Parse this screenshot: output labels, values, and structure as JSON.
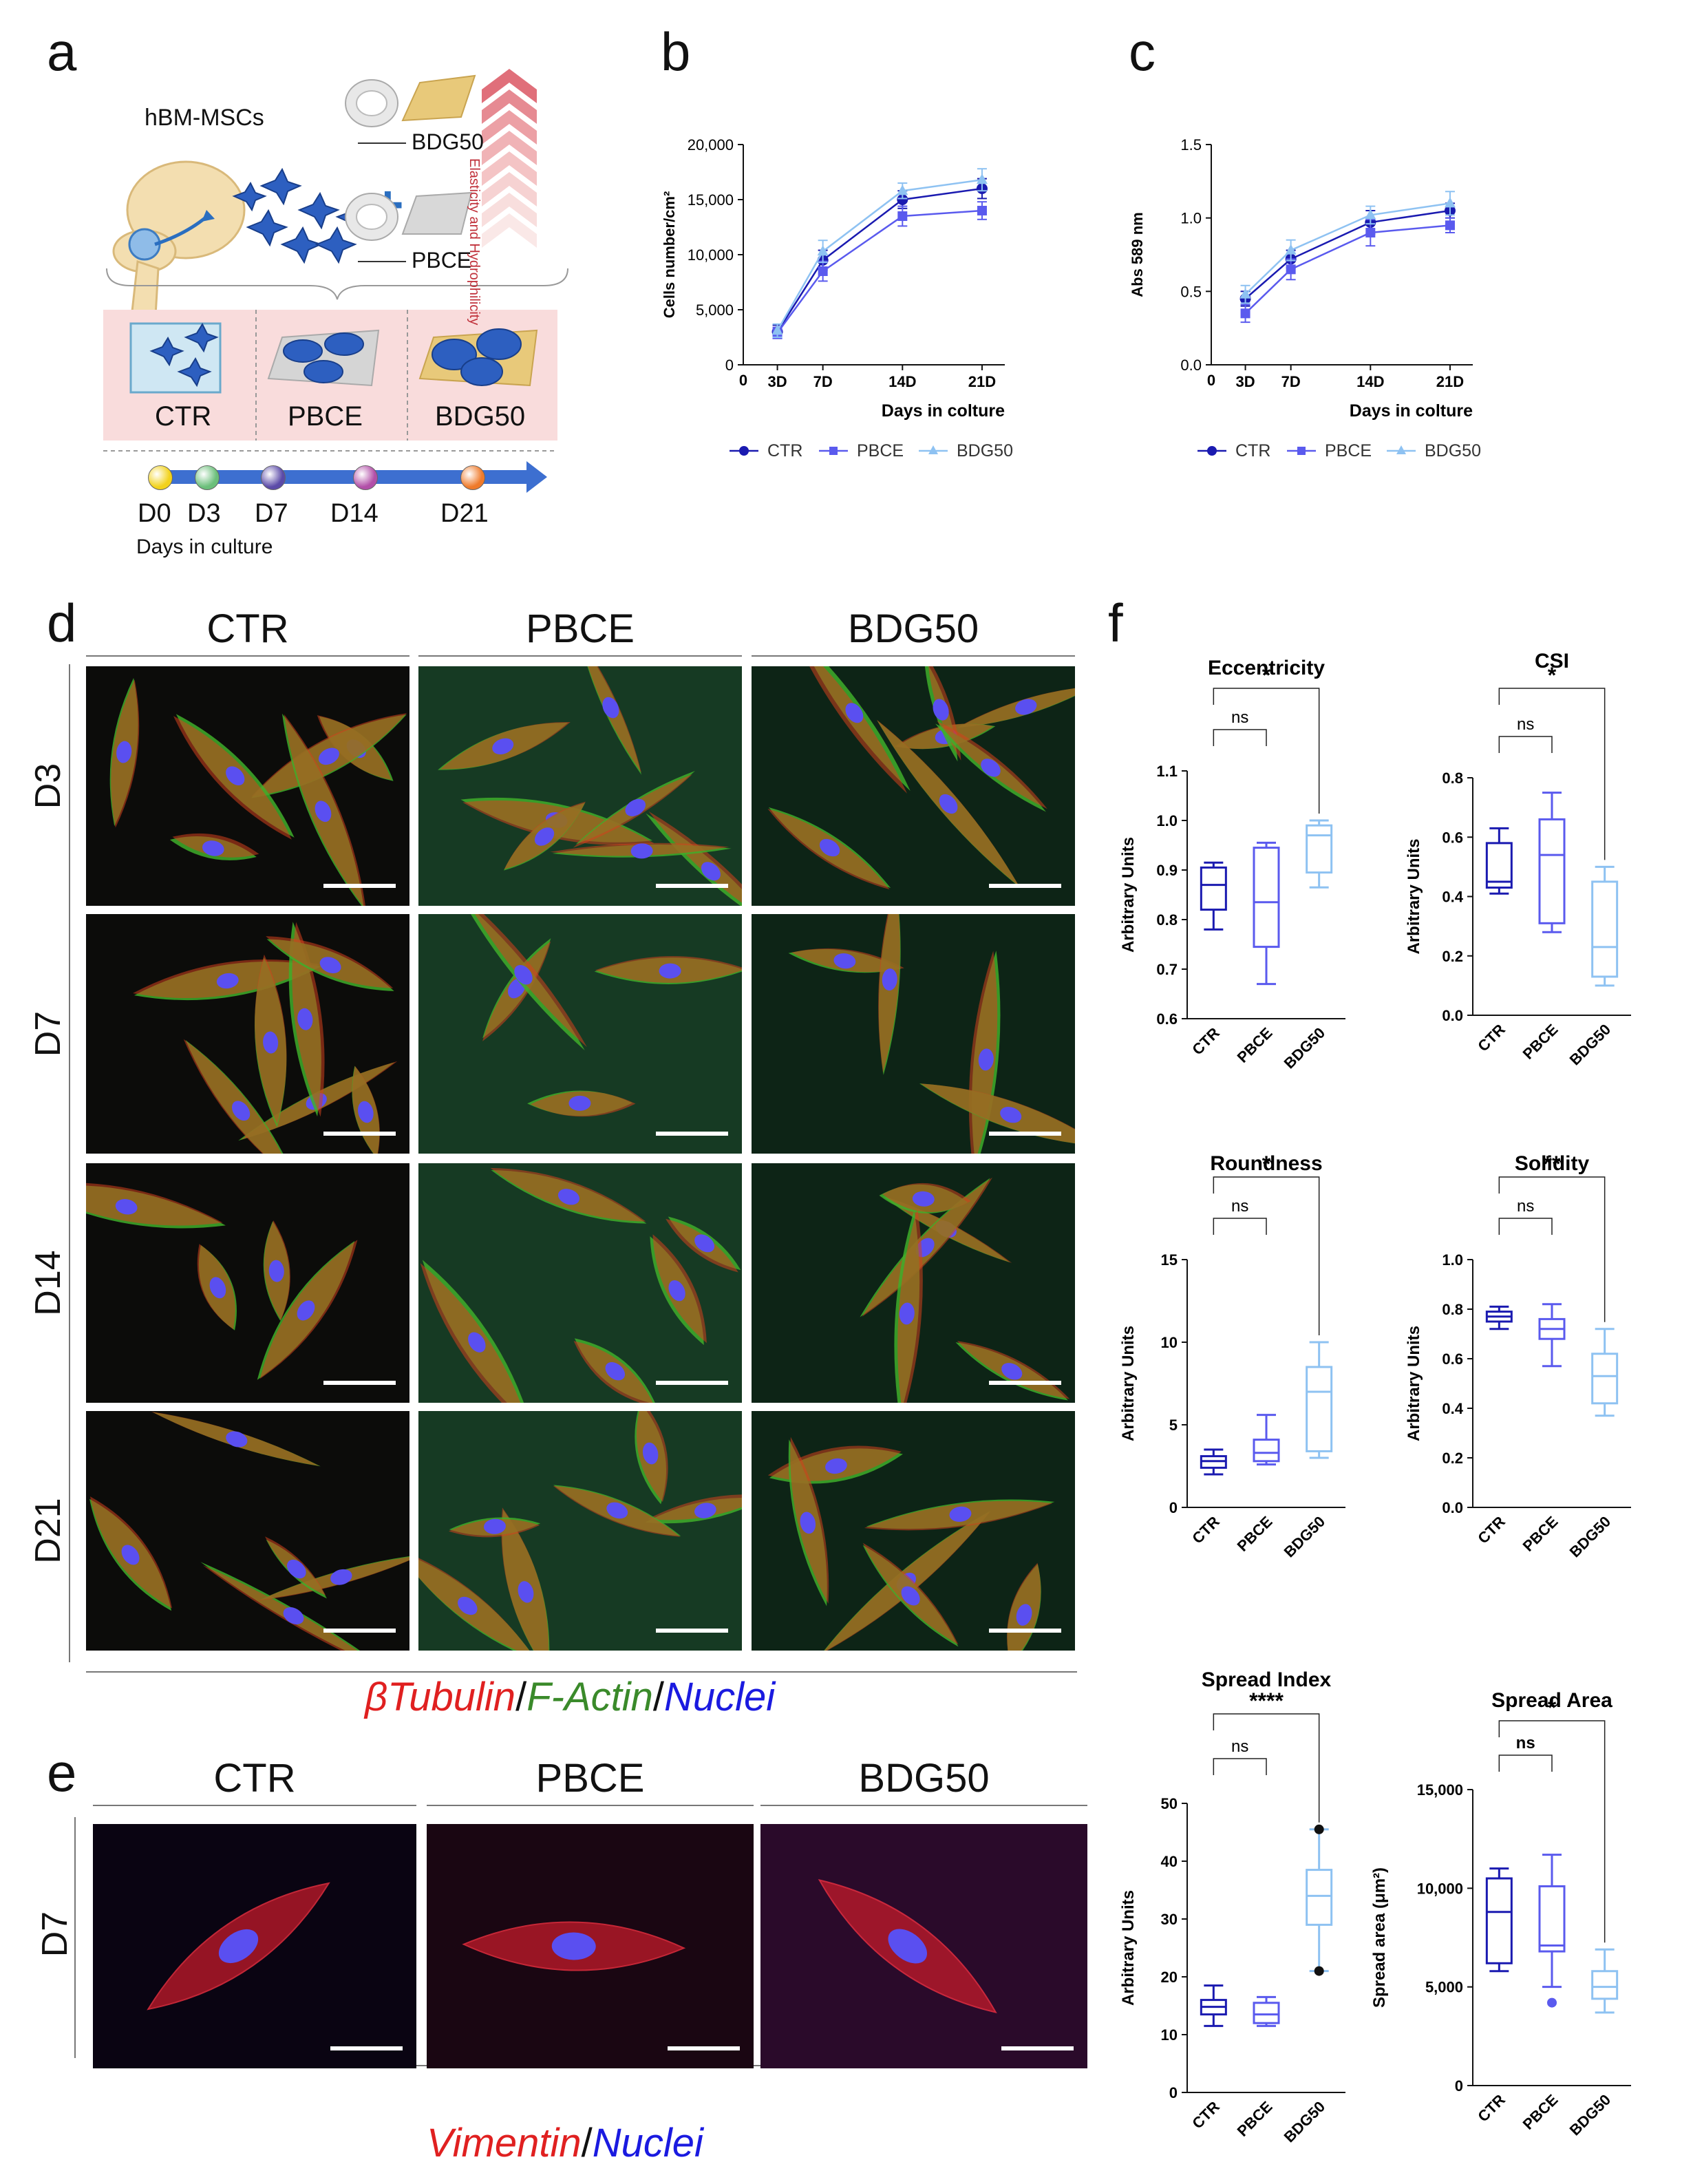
{
  "panel_labels": {
    "a": "a",
    "b": "b",
    "c": "c",
    "d": "d",
    "e": "e",
    "f": "f"
  },
  "schematic": {
    "cells_label": "hBM-MSCs",
    "bdg50_label": "BDG50",
    "pbce_label": "PBCE",
    "arrow_text": "Elasticity and Hydrophilicity",
    "conditions": [
      "CTR",
      "PBCE",
      "BDG50"
    ],
    "timeline_points": [
      "D0",
      "D3",
      "D7",
      "D14",
      "D21"
    ],
    "timeline_colors": [
      "#f2d21b",
      "#6bbf7a",
      "#5b4aa8",
      "#b24fa8",
      "#ef7a2a"
    ],
    "timeline_caption": "Days in culture"
  },
  "colors": {
    "ctr": "#1a1ab0",
    "pbce": "#5a5aee",
    "bdg50": "#8ec2f2"
  },
  "grid_d": {
    "columns": [
      "CTR",
      "PBCE",
      "BDG50"
    ],
    "rows": [
      "D3",
      "D7",
      "D14",
      "D21"
    ],
    "stain": {
      "part1": "βTubulin",
      "sep1": "/",
      "part2": "F-Actin",
      "sep2": "/",
      "part3": "Nuclei"
    }
  },
  "grid_e": {
    "columns": [
      "CTR",
      "PBCE",
      "BDG50"
    ],
    "row": "D7",
    "stain": {
      "part1": "Vimentin",
      "sep1": "/",
      "part2": "Nuclei"
    }
  },
  "chart_data": [
    {
      "id": "b",
      "type": "line",
      "x": [
        "3D",
        "7D",
        "14D",
        "21D"
      ],
      "ylabel": "Cells number/cm²",
      "xlabel": "Days in colture",
      "ylim": [
        0,
        20000
      ],
      "yticks": [
        "0",
        "5,000",
        "10,000",
        "15,000",
        "20,000"
      ],
      "series": [
        {
          "name": "CTR",
          "values": [
            3000,
            9500,
            15000,
            16000
          ],
          "err": [
            600,
            900,
            800,
            900
          ]
        },
        {
          "name": "PBCE",
          "values": [
            2900,
            8500,
            13500,
            14000
          ],
          "err": [
            500,
            900,
            900,
            800
          ]
        },
        {
          "name": "BDG50",
          "values": [
            3100,
            10300,
            15800,
            16800
          ],
          "err": [
            600,
            1000,
            700,
            1000
          ]
        }
      ]
    },
    {
      "id": "c",
      "type": "line",
      "x": [
        "3D",
        "7D",
        "14D",
        "21D"
      ],
      "ylabel": "Abs 589 nm",
      "xlabel": "Days in colture",
      "ylim": [
        0,
        1.5
      ],
      "yticks": [
        "0.0",
        "0.5",
        "1.0",
        "1.5"
      ],
      "series": [
        {
          "name": "CTR",
          "values": [
            0.45,
            0.72,
            0.97,
            1.05
          ],
          "err": [
            0.05,
            0.06,
            0.08,
            0.05
          ]
        },
        {
          "name": "PBCE",
          "values": [
            0.35,
            0.65,
            0.9,
            0.95
          ],
          "err": [
            0.06,
            0.07,
            0.09,
            0.05
          ]
        },
        {
          "name": "BDG50",
          "values": [
            0.48,
            0.78,
            1.02,
            1.1
          ],
          "err": [
            0.06,
            0.07,
            0.06,
            0.08
          ]
        }
      ]
    },
    {
      "id": "f1",
      "type": "box",
      "title": "Eccentricity",
      "ylabel": "Arbitrary Units",
      "ylim": [
        0.6,
        1.1
      ],
      "yticks": [
        "0.6",
        "0.7",
        "0.8",
        "0.9",
        "1.0",
        "1.1"
      ],
      "categories": [
        "CTR",
        "PBCE",
        "BDG50"
      ],
      "boxes": [
        {
          "min": 0.78,
          "q1": 0.82,
          "median": 0.87,
          "q3": 0.905,
          "max": 0.915
        },
        {
          "min": 0.67,
          "q1": 0.745,
          "median": 0.835,
          "q3": 0.945,
          "max": 0.955
        },
        {
          "min": 0.865,
          "q1": 0.895,
          "median": 0.97,
          "q3": 0.99,
          "max": 1.0
        }
      ],
      "sig": [
        "ns",
        "*"
      ]
    },
    {
      "id": "f2",
      "type": "box",
      "title": "CSI",
      "ylabel": "Arbitrary Units",
      "ylim": [
        0,
        0.8
      ],
      "yticks": [
        "0.0",
        "0.2",
        "0.4",
        "0.6",
        "0.8"
      ],
      "categories": [
        "CTR",
        "PBCE",
        "BDG50"
      ],
      "boxes": [
        {
          "min": 0.41,
          "q1": 0.43,
          "median": 0.45,
          "q3": 0.58,
          "max": 0.63
        },
        {
          "min": 0.28,
          "q1": 0.31,
          "median": 0.54,
          "q3": 0.66,
          "max": 0.75
        },
        {
          "min": 0.1,
          "q1": 0.13,
          "median": 0.23,
          "q3": 0.45,
          "max": 0.5
        }
      ],
      "sig": [
        "ns",
        "*"
      ]
    },
    {
      "id": "f3",
      "type": "box",
      "title": "Roundness",
      "ylabel": "Arbitrary Units",
      "ylim": [
        0,
        15
      ],
      "yticks": [
        "0",
        "5",
        "10",
        "15"
      ],
      "categories": [
        "CTR",
        "PBCE",
        "BDG50"
      ],
      "boxes": [
        {
          "min": 2.0,
          "q1": 2.4,
          "median": 2.8,
          "q3": 3.1,
          "max": 3.5
        },
        {
          "min": 2.6,
          "q1": 2.8,
          "median": 3.3,
          "q3": 4.1,
          "max": 5.6
        },
        {
          "min": 3.0,
          "q1": 3.4,
          "median": 7.0,
          "q3": 8.5,
          "max": 10.0
        }
      ],
      "sig": [
        "ns",
        "*"
      ]
    },
    {
      "id": "f4",
      "type": "box",
      "title": "Solidity",
      "ylabel": "Arbitrary Units",
      "ylim": [
        0,
        1.0
      ],
      "yticks": [
        "0.0",
        "0.2",
        "0.4",
        "0.6",
        "0.8",
        "1.0"
      ],
      "categories": [
        "CTR",
        "PBCE",
        "BDG50"
      ],
      "boxes": [
        {
          "min": 0.72,
          "q1": 0.75,
          "median": 0.77,
          "q3": 0.79,
          "max": 0.81
        },
        {
          "min": 0.57,
          "q1": 0.68,
          "median": 0.72,
          "q3": 0.76,
          "max": 0.82
        },
        {
          "min": 0.37,
          "q1": 0.42,
          "median": 0.53,
          "q3": 0.62,
          "max": 0.72
        }
      ],
      "sig": [
        "ns",
        "**"
      ]
    },
    {
      "id": "f5",
      "type": "box",
      "title": "Spread Index",
      "ylabel": "Arbitrary Units",
      "ylim": [
        0,
        50
      ],
      "yticks": [
        "0",
        "10",
        "20",
        "30",
        "40",
        "50"
      ],
      "categories": [
        "CTR",
        "PBCE",
        "BDG50"
      ],
      "boxes": [
        {
          "min": 11.5,
          "q1": 13.5,
          "median": 14.8,
          "q3": 16,
          "max": 18.5
        },
        {
          "min": 11.5,
          "q1": 12,
          "median": 13.5,
          "q3": 15.5,
          "max": 16.5
        },
        {
          "min": 21,
          "q1": 29,
          "median": 34,
          "q3": 38.5,
          "max": 45.5,
          "outliers": [
            21,
            45.5
          ]
        }
      ],
      "sig": [
        "ns",
        "****"
      ]
    },
    {
      "id": "f6",
      "type": "box",
      "title": "Spread Area",
      "ylabel": "Spread area (μm²)",
      "ylim": [
        0,
        15000
      ],
      "yticks": [
        "0",
        "5,000",
        "10,000",
        "15,000"
      ],
      "categories": [
        "CTR",
        "PBCE",
        "BDG50"
      ],
      "boxes": [
        {
          "min": 5800,
          "q1": 6200,
          "median": 8800,
          "q3": 10500,
          "max": 11000
        },
        {
          "min": 5000,
          "q1": 6800,
          "median": 7100,
          "q3": 10100,
          "max": 11700,
          "outliers": [
            4200
          ]
        },
        {
          "min": 3700,
          "q1": 4400,
          "median": 5000,
          "q3": 5800,
          "max": 6900
        }
      ],
      "sig": [
        "ns",
        "*"
      ]
    }
  ]
}
